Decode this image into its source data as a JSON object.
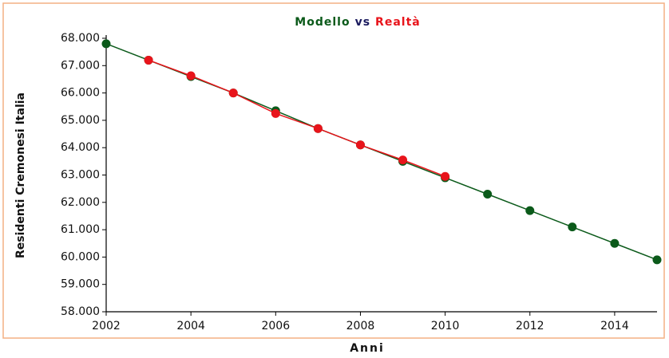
{
  "chart_data": {
    "type": "line",
    "title_parts": [
      {
        "text": "Modello",
        "color": "#0b5a1a"
      },
      {
        "text": "vs",
        "color": "#1a1a5e"
      },
      {
        "text": "Realtà",
        "color": "#e8141b"
      }
    ],
    "xlabel": "Anni",
    "ylabel": "Residenti Cremonesi Italia",
    "series": [
      {
        "name": "Modello",
        "color": "#0b5a1a",
        "x": [
          2002,
          2003,
          2004,
          2005,
          2006,
          2007,
          2008,
          2009,
          2010,
          2011,
          2012,
          2013,
          2014,
          2015
        ],
        "values": [
          67800,
          67200,
          66600,
          66000,
          65350,
          64700,
          64100,
          63500,
          62900,
          62300,
          61700,
          61100,
          60500,
          59900
        ]
      },
      {
        "name": "Realtà",
        "color": "#e8141b",
        "x": [
          2003,
          2004,
          2005,
          2006,
          2007,
          2008,
          2009,
          2010
        ],
        "values": [
          67200,
          66630,
          66000,
          65250,
          64700,
          64100,
          63550,
          62950
        ]
      }
    ],
    "xlim": [
      2002,
      2015
    ],
    "xticks": [
      2002,
      2004,
      2006,
      2008,
      2010,
      2012,
      2014
    ],
    "ylim": [
      58000,
      68000
    ],
    "yticks": [
      {
        "value": 58000,
        "label": "58.000"
      },
      {
        "value": 59000,
        "label": "59.000"
      },
      {
        "value": 60000,
        "label": "60.000"
      },
      {
        "value": 61000,
        "label": "61.000"
      },
      {
        "value": 62000,
        "label": "62.000"
      },
      {
        "value": 63000,
        "label": "63.000"
      },
      {
        "value": 64000,
        "label": "64.000"
      },
      {
        "value": 65000,
        "label": "65.000"
      },
      {
        "value": 66000,
        "label": "66.000"
      },
      {
        "value": 67000,
        "label": "67.000"
      },
      {
        "value": 68000,
        "label": "68.000"
      }
    ]
  }
}
